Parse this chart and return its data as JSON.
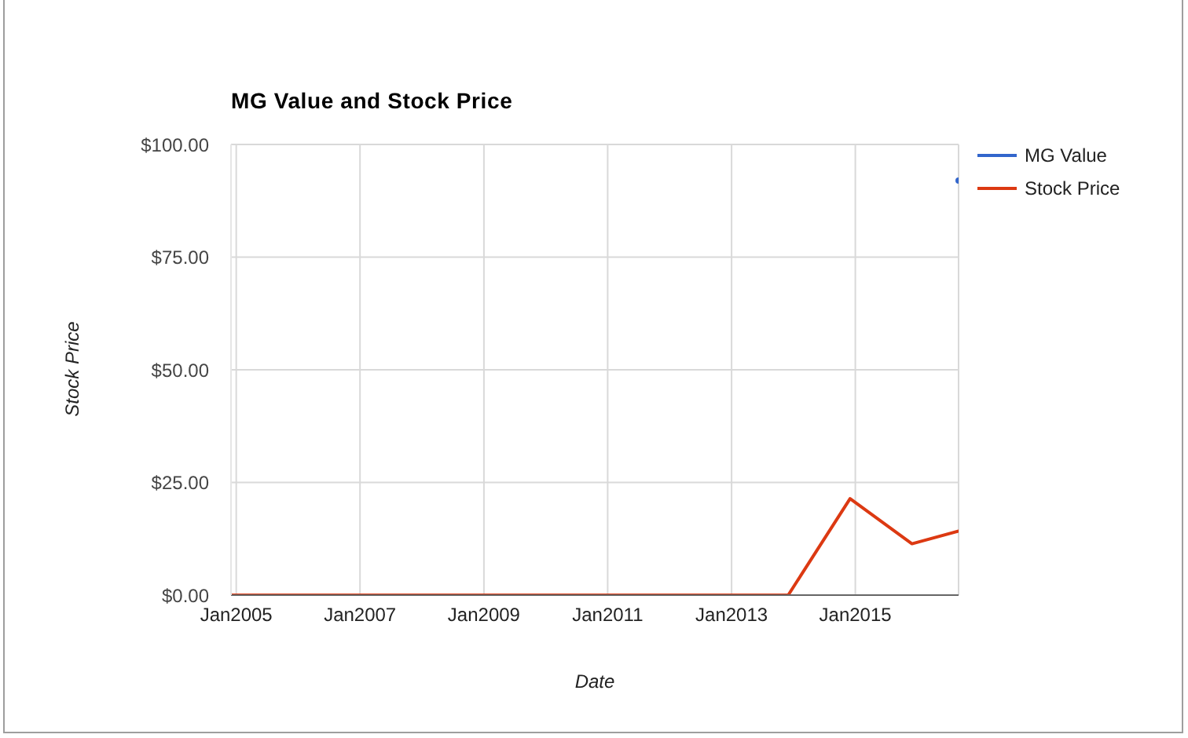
{
  "chart_data": {
    "type": "line",
    "title": "MG Value and Stock Price",
    "xlabel": "Date",
    "ylabel": "Stock Price",
    "x": [
      "2004-12",
      "2005-12",
      "2006-12",
      "2007-12",
      "2008-12",
      "2009-12",
      "2010-12",
      "2011-12",
      "2012-12",
      "2013-12",
      "2014-12",
      "2015-12",
      "2016-09"
    ],
    "series": [
      {
        "name": "MG Value",
        "color": "#3366cc",
        "marker": "circle",
        "values": [
          null,
          null,
          null,
          null,
          null,
          null,
          null,
          null,
          null,
          null,
          null,
          null,
          92
        ]
      },
      {
        "name": "Stock Price",
        "color": "#dc3912",
        "values": [
          0,
          0,
          0,
          0,
          0,
          0,
          0,
          0,
          0,
          0,
          21.4,
          11.4,
          14.2
        ]
      }
    ],
    "xlim": [
      "2004-12",
      "2016-09"
    ],
    "xticks": [
      {
        "value": "2005-01",
        "label": "Jan2005"
      },
      {
        "value": "2007-01",
        "label": "Jan2007"
      },
      {
        "value": "2009-01",
        "label": "Jan2009"
      },
      {
        "value": "2011-01",
        "label": "Jan2011"
      },
      {
        "value": "2013-01",
        "label": "Jan2013"
      },
      {
        "value": "2015-01",
        "label": "Jan2015"
      }
    ],
    "ylim": [
      0,
      100
    ],
    "yticks": [
      {
        "value": 0,
        "label": "$0.00"
      },
      {
        "value": 25,
        "label": "$25.00"
      },
      {
        "value": 50,
        "label": "$50.00"
      },
      {
        "value": 75,
        "label": "$75.00"
      },
      {
        "value": 100,
        "label": "$100.00"
      }
    ],
    "grid": true,
    "legend": "top right"
  }
}
